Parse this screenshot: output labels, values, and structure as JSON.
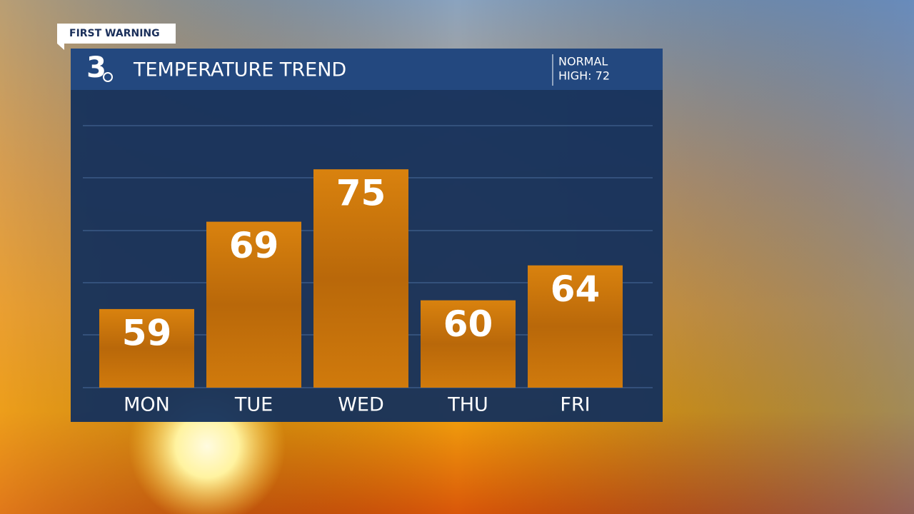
{
  "brand": {
    "tag": "FIRST WARNING",
    "logo": "3"
  },
  "chart_data": {
    "type": "bar",
    "title": "TEMPERATURE TREND",
    "normal_label": "NORMAL",
    "normal_value": "HIGH: 72",
    "categories": [
      "MON",
      "TUE",
      "WED",
      "THU",
      "FRI"
    ],
    "values": [
      59,
      69,
      75,
      60,
      64
    ],
    "color": "#d07a0c",
    "ylim": [
      50,
      80
    ]
  }
}
